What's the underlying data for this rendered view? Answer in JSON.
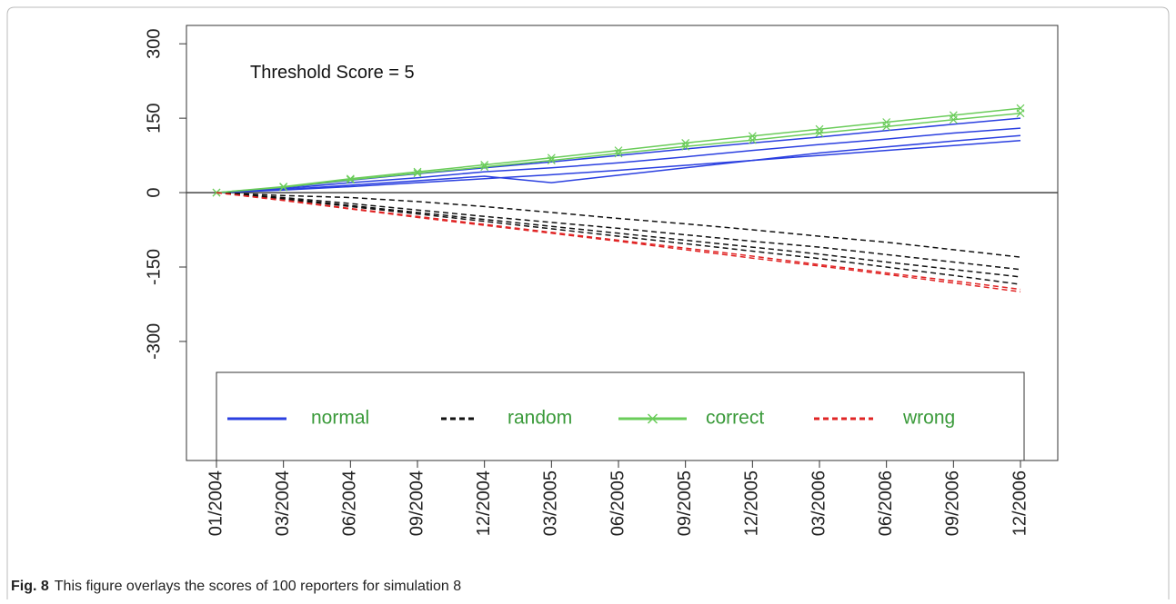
{
  "chart_data": {
    "type": "line",
    "annotation": "Threshold Score = 5",
    "caption": {
      "label": "Fig. 8",
      "text": "This figure overlays the scores of 100 reporters for simulation 8"
    },
    "categories": [
      "01/2004",
      "03/2004",
      "06/2004",
      "09/2004",
      "12/2004",
      "03/2005",
      "06/2005",
      "09/2005",
      "12/2005",
      "03/2006",
      "06/2006",
      "09/2006",
      "12/2006"
    ],
    "ylim": [
      -540,
      337
    ],
    "yticks": [
      300,
      150,
      0,
      -150,
      -300
    ],
    "yticks_labels_rotated": true,
    "series": [
      {
        "name": "normal",
        "color": "#2a3fe0",
        "dash": "solid",
        "lines": [
          [
            0,
            10,
            25,
            38,
            50,
            62,
            75,
            88,
            100,
            112,
            125,
            138,
            150
          ],
          [
            0,
            8,
            20,
            30,
            42,
            50,
            60,
            72,
            85,
            97,
            108,
            120,
            130
          ],
          [
            0,
            6,
            15,
            24,
            33,
            20,
            35,
            50,
            65,
            80,
            92,
            104,
            115
          ],
          [
            0,
            5,
            12,
            20,
            28,
            36,
            45,
            55,
            65,
            75,
            85,
            95,
            105
          ]
        ]
      },
      {
        "name": "random",
        "color": "#111111",
        "dash": "dashed",
        "lines": [
          [
            0,
            -6,
            -10,
            -18,
            -28,
            -40,
            -52,
            -63,
            -75,
            -88,
            -100,
            -115,
            -130
          ],
          [
            0,
            -10,
            -22,
            -35,
            -48,
            -60,
            -72,
            -85,
            -98,
            -110,
            -125,
            -140,
            -155
          ],
          [
            0,
            -12,
            -26,
            -40,
            -54,
            -68,
            -82,
            -96,
            -110,
            -124,
            -140,
            -155,
            -170
          ],
          [
            0,
            -13,
            -28,
            -43,
            -58,
            -73,
            -88,
            -103,
            -118,
            -133,
            -150,
            -167,
            -185
          ]
        ]
      },
      {
        "name": "correct",
        "color": "#6acc5a",
        "dash": "markers",
        "lines": [
          [
            0,
            12,
            28,
            42,
            56,
            70,
            85,
            100,
            114,
            128,
            142,
            156,
            170
          ],
          [
            0,
            11,
            26,
            39,
            52,
            65,
            79,
            93,
            106,
            120,
            133,
            147,
            160
          ]
        ]
      },
      {
        "name": "wrong",
        "color": "#e02424",
        "dash": "dashed",
        "lines": [
          [
            0,
            -16,
            -33,
            -50,
            -66,
            -82,
            -98,
            -115,
            -132,
            -148,
            -165,
            -182,
            -200
          ],
          [
            0,
            -15,
            -32,
            -48,
            -64,
            -80,
            -96,
            -112,
            -128,
            -145,
            -162,
            -178,
            -195
          ]
        ]
      }
    ],
    "legend_text_color": "#3a9a3a",
    "reference_line": 0
  }
}
